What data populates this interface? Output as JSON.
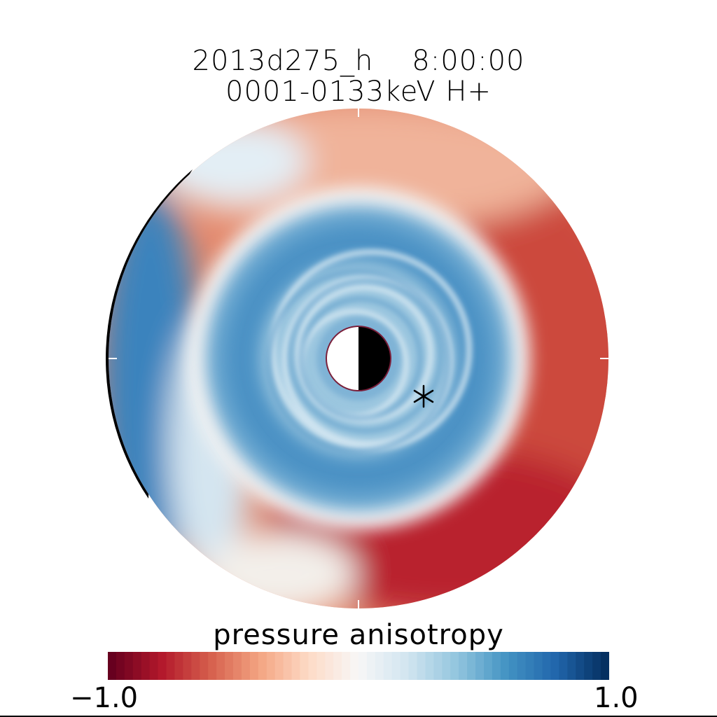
{
  "title": {
    "line1": "2013d275_h    8:00:00",
    "line2": "0001-0133keV H+"
  },
  "chart_data": {
    "type": "heatmap",
    "projection": "polar (equatorial plane, Sun to the right)",
    "quantity": "pressure anisotropy",
    "colorbar": {
      "label": "pressure anisotropy",
      "min": -1.0,
      "max": 1.0,
      "tick_labels": [
        "−1.0",
        "1.0"
      ],
      "colormap": "diverging red-white-blue",
      "color_low": "#67001f",
      "color_mid": "#f7f7f7",
      "color_high": "#053061"
    },
    "regions": [
      {
        "region": "inner ring near Earth",
        "value_approx": 0.45
      },
      {
        "region": "dayside outer ring",
        "value_approx": -0.6
      },
      {
        "region": "dusk/night outer ring",
        "value_approx": -0.75
      },
      {
        "region": "dawn outer edge",
        "value_approx": 0.6
      }
    ],
    "markers": [
      {
        "symbol": "asterisk",
        "meaning": "satellite position"
      }
    ],
    "earth": {
      "dayside": "white",
      "nightside": "black"
    }
  }
}
